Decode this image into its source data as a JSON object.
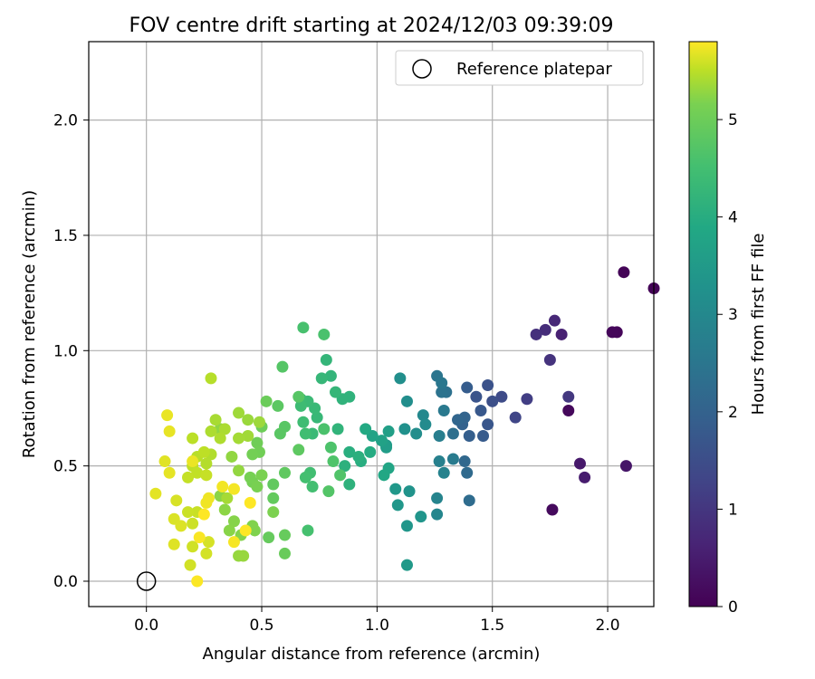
{
  "chart_data": {
    "type": "scatter",
    "title": "FOV centre drift starting at 2024/12/03 09:39:09",
    "xlabel": "Angular distance from reference (arcmin)",
    "ylabel": "Rotation from reference (arcmin)",
    "xlim": [
      -0.25,
      2.2
    ],
    "ylim": [
      -0.11,
      2.34
    ],
    "xticks": [
      0.0,
      0.5,
      1.0,
      1.5,
      2.0
    ],
    "yticks": [
      0.0,
      0.5,
      1.0,
      1.5,
      2.0
    ],
    "xtick_labels": [
      "0.0",
      "0.5",
      "1.0",
      "1.5",
      "2.0"
    ],
    "ytick_labels": [
      "0.0",
      "0.5",
      "1.0",
      "1.5",
      "2.0"
    ],
    "grid": true,
    "legend": {
      "placement": "top-right",
      "entries": [
        "Reference platepar"
      ]
    },
    "reference_point": {
      "x": 0.0,
      "y": 0.0,
      "label": "Reference platepar"
    },
    "colorbar": {
      "label": "Hours from first FF file",
      "colormap": "viridis",
      "range": [
        0,
        5.8
      ],
      "ticks": [
        0,
        1,
        2,
        3,
        4,
        5
      ],
      "tick_labels": [
        "0",
        "1",
        "2",
        "3",
        "4",
        "5"
      ]
    },
    "points": [
      [
        2.07,
        1.34,
        0.05
      ],
      [
        2.2,
        1.27,
        0.05
      ],
      [
        2.04,
        1.08,
        0.08
      ],
      [
        2.02,
        1.08,
        0.1
      ],
      [
        1.83,
        0.74,
        0.12
      ],
      [
        1.76,
        0.31,
        0.15
      ],
      [
        2.08,
        0.5,
        0.35
      ],
      [
        1.88,
        0.51,
        0.4
      ],
      [
        1.9,
        0.45,
        0.45
      ],
      [
        1.8,
        1.07,
        0.55
      ],
      [
        1.77,
        1.13,
        0.65
      ],
      [
        1.73,
        1.09,
        0.75
      ],
      [
        1.69,
        1.07,
        0.8
      ],
      [
        1.75,
        0.96,
        0.85
      ],
      [
        1.83,
        0.8,
        0.95
      ],
      [
        1.65,
        0.79,
        1.05
      ],
      [
        1.6,
        0.71,
        1.2
      ],
      [
        1.54,
        0.8,
        1.3
      ],
      [
        1.5,
        0.78,
        1.4
      ],
      [
        1.48,
        0.85,
        1.45
      ],
      [
        1.43,
        0.8,
        1.5
      ],
      [
        1.48,
        0.68,
        1.55
      ],
      [
        1.45,
        0.74,
        1.6
      ],
      [
        1.46,
        0.63,
        1.65
      ],
      [
        1.39,
        0.84,
        1.7
      ],
      [
        1.4,
        0.63,
        1.75
      ],
      [
        1.37,
        0.68,
        1.8
      ],
      [
        1.38,
        0.71,
        1.85
      ],
      [
        1.35,
        0.7,
        1.9
      ],
      [
        1.38,
        0.52,
        1.95
      ],
      [
        1.39,
        0.47,
        2.0
      ],
      [
        1.4,
        0.35,
        2.05
      ],
      [
        1.33,
        0.64,
        2.1
      ],
      [
        1.3,
        0.82,
        2.15
      ],
      [
        1.28,
        0.82,
        2.2
      ],
      [
        1.26,
        0.89,
        2.25
      ],
      [
        1.28,
        0.86,
        2.3
      ],
      [
        1.29,
        0.74,
        2.35
      ],
      [
        1.33,
        0.53,
        2.4
      ],
      [
        1.27,
        0.63,
        2.45
      ],
      [
        1.27,
        0.52,
        2.5
      ],
      [
        1.29,
        0.47,
        2.55
      ],
      [
        1.26,
        0.36,
        2.6
      ],
      [
        1.26,
        0.29,
        2.65
      ],
      [
        1.2,
        0.72,
        2.7
      ],
      [
        1.21,
        0.68,
        2.75
      ],
      [
        1.17,
        0.64,
        2.8
      ],
      [
        1.13,
        0.78,
        2.82
      ],
      [
        1.1,
        0.88,
        2.85
      ],
      [
        1.12,
        0.66,
        2.9
      ],
      [
        1.14,
        0.39,
        2.95
      ],
      [
        1.19,
        0.28,
        3.0
      ],
      [
        1.13,
        0.24,
        3.02
      ],
      [
        1.09,
        0.33,
        3.05
      ],
      [
        1.08,
        0.4,
        3.08
      ],
      [
        1.13,
        0.07,
        3.1
      ],
      [
        1.04,
        0.59,
        3.15
      ],
      [
        1.04,
        0.58,
        3.2
      ],
      [
        1.05,
        0.65,
        3.25
      ],
      [
        1.02,
        0.61,
        3.3
      ],
      [
        0.98,
        0.63,
        3.35
      ],
      [
        1.05,
        0.49,
        3.4
      ],
      [
        1.03,
        0.46,
        3.45
      ],
      [
        0.95,
        0.66,
        3.5
      ],
      [
        0.97,
        0.56,
        3.55
      ],
      [
        0.93,
        0.52,
        3.6
      ],
      [
        0.88,
        0.56,
        3.62
      ],
      [
        0.92,
        0.54,
        3.65
      ],
      [
        0.86,
        0.5,
        3.68
      ],
      [
        0.88,
        0.42,
        3.7
      ],
      [
        0.88,
        0.8,
        3.72
      ],
      [
        0.85,
        0.79,
        3.74
      ],
      [
        0.83,
        0.66,
        3.76
      ],
      [
        0.8,
        0.89,
        3.78
      ],
      [
        0.78,
        0.96,
        3.8
      ],
      [
        0.82,
        0.82,
        3.82
      ],
      [
        0.76,
        0.88,
        3.84
      ],
      [
        0.74,
        0.71,
        3.86
      ],
      [
        0.73,
        0.75,
        3.88
      ],
      [
        0.72,
        0.64,
        3.9
      ],
      [
        0.7,
        0.78,
        3.92
      ],
      [
        0.67,
        0.79,
        3.94
      ],
      [
        0.67,
        0.76,
        3.96
      ],
      [
        0.68,
        0.69,
        3.98
      ],
      [
        0.69,
        0.64,
        4.0
      ],
      [
        0.71,
        0.47,
        4.02
      ],
      [
        0.72,
        0.41,
        4.04
      ],
      [
        0.69,
        0.45,
        4.06
      ],
      [
        0.7,
        0.22,
        4.08
      ],
      [
        0.68,
        1.1,
        4.1
      ],
      [
        0.77,
        1.07,
        4.12
      ],
      [
        0.77,
        0.66,
        4.14
      ],
      [
        0.8,
        0.58,
        4.16
      ],
      [
        0.81,
        0.52,
        4.18
      ],
      [
        0.84,
        0.46,
        4.2
      ],
      [
        0.79,
        0.39,
        4.22
      ],
      [
        0.59,
        0.93,
        4.24
      ],
      [
        0.66,
        0.8,
        4.26
      ],
      [
        0.6,
        0.67,
        4.28
      ],
      [
        0.58,
        0.64,
        4.3
      ],
      [
        0.57,
        0.76,
        4.32
      ],
      [
        0.66,
        0.57,
        4.34
      ],
      [
        0.6,
        0.47,
        4.36
      ],
      [
        0.55,
        0.42,
        4.38
      ],
      [
        0.55,
        0.36,
        4.4
      ],
      [
        0.53,
        0.19,
        4.42
      ],
      [
        0.6,
        0.2,
        4.44
      ],
      [
        0.6,
        0.12,
        4.46
      ],
      [
        0.52,
        0.78,
        4.48
      ],
      [
        0.5,
        0.67,
        4.5
      ],
      [
        0.48,
        0.6,
        4.52
      ],
      [
        0.49,
        0.56,
        4.54
      ],
      [
        0.46,
        0.55,
        4.56
      ],
      [
        0.46,
        0.43,
        4.58
      ],
      [
        0.45,
        0.45,
        4.6
      ],
      [
        0.48,
        0.41,
        4.62
      ],
      [
        0.5,
        0.46,
        4.64
      ],
      [
        0.55,
        0.3,
        4.66
      ],
      [
        0.47,
        0.22,
        4.68
      ],
      [
        0.46,
        0.24,
        4.7
      ],
      [
        0.41,
        0.2,
        4.72
      ],
      [
        0.38,
        0.26,
        4.74
      ],
      [
        0.36,
        0.22,
        4.76
      ],
      [
        0.32,
        0.37,
        4.78
      ],
      [
        0.34,
        0.31,
        4.8
      ],
      [
        0.32,
        0.66,
        4.82
      ],
      [
        0.37,
        0.54,
        4.84
      ],
      [
        0.4,
        0.48,
        4.86
      ],
      [
        0.4,
        0.11,
        4.88
      ],
      [
        0.42,
        0.11,
        4.9
      ],
      [
        0.44,
        0.7,
        4.92
      ],
      [
        0.49,
        0.69,
        4.94
      ],
      [
        0.4,
        0.73,
        4.96
      ],
      [
        0.44,
        0.63,
        4.98
      ],
      [
        0.4,
        0.62,
        5.0
      ],
      [
        0.35,
        0.36,
        5.02
      ],
      [
        0.3,
        0.7,
        5.04
      ],
      [
        0.34,
        0.66,
        5.06
      ],
      [
        0.28,
        0.65,
        5.08
      ],
      [
        0.32,
        0.62,
        5.1
      ],
      [
        0.28,
        0.55,
        5.12
      ],
      [
        0.26,
        0.51,
        5.14
      ],
      [
        0.28,
        0.88,
        5.16
      ],
      [
        0.22,
        0.54,
        5.18
      ],
      [
        0.2,
        0.62,
        5.2
      ],
      [
        0.25,
        0.56,
        5.22
      ],
      [
        0.2,
        0.5,
        5.24
      ],
      [
        0.22,
        0.47,
        5.26
      ],
      [
        0.18,
        0.45,
        5.28
      ],
      [
        0.26,
        0.46,
        5.3
      ],
      [
        0.22,
        0.3,
        5.32
      ],
      [
        0.18,
        0.3,
        5.34
      ],
      [
        0.2,
        0.25,
        5.36
      ],
      [
        0.2,
        0.15,
        5.38
      ],
      [
        0.19,
        0.07,
        5.4
      ],
      [
        0.26,
        0.12,
        5.42
      ],
      [
        0.27,
        0.17,
        5.44
      ],
      [
        0.13,
        0.35,
        5.46
      ],
      [
        0.12,
        0.27,
        5.48
      ],
      [
        0.15,
        0.24,
        5.5
      ],
      [
        0.12,
        0.16,
        5.52
      ],
      [
        0.08,
        0.52,
        5.54
      ],
      [
        0.04,
        0.38,
        5.56
      ],
      [
        0.1,
        0.47,
        5.58
      ],
      [
        0.1,
        0.65,
        5.6
      ],
      [
        0.09,
        0.72,
        5.62
      ],
      [
        0.2,
        0.52,
        5.64
      ],
      [
        0.27,
        0.36,
        5.66
      ],
      [
        0.26,
        0.34,
        5.68
      ],
      [
        0.33,
        0.41,
        5.7
      ],
      [
        0.38,
        0.4,
        5.72
      ],
      [
        0.38,
        0.17,
        5.74
      ],
      [
        0.23,
        0.19,
        5.76
      ],
      [
        0.22,
        0.0,
        5.78
      ],
      [
        0.25,
        0.29,
        5.8
      ],
      [
        0.43,
        0.22,
        5.8
      ],
      [
        0.45,
        0.34,
        5.8
      ]
    ]
  }
}
